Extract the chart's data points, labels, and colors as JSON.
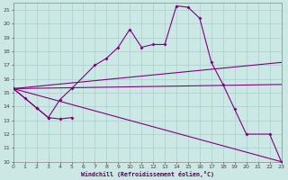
{
  "xlabel": "Windchill (Refroidissement éolien,°C)",
  "background_color": "#cce8e4",
  "line_color": "#800080",
  "grid_color": "#aacfcc",
  "xmin": 0,
  "xmax": 23,
  "ymin": 10,
  "ymax": 21.5,
  "yticks": [
    10,
    11,
    12,
    13,
    14,
    15,
    16,
    17,
    18,
    19,
    20,
    21
  ],
  "xticks": [
    0,
    1,
    2,
    3,
    4,
    5,
    6,
    7,
    8,
    9,
    10,
    11,
    12,
    13,
    14,
    15,
    16,
    17,
    18,
    19,
    20,
    21,
    22,
    23
  ],
  "curve1_x": [
    0,
    1,
    2,
    3,
    4,
    5
  ],
  "curve1_y": [
    15.3,
    14.6,
    13.9,
    13.2,
    13.1,
    13.2
  ],
  "curve2_x": [
    0,
    2,
    3,
    4,
    5,
    7,
    8,
    9,
    10,
    11,
    12,
    13,
    14,
    15,
    16,
    17,
    18,
    19,
    20,
    22,
    23
  ],
  "curve2_y": [
    15.3,
    13.9,
    13.2,
    14.5,
    15.3,
    17.0,
    17.5,
    18.3,
    19.6,
    18.3,
    18.5,
    18.5,
    21.3,
    21.2,
    20.4,
    17.2,
    15.6,
    13.8,
    12.0,
    12.0,
    10.0
  ],
  "line1_x": [
    0,
    23
  ],
  "line1_y": [
    15.3,
    17.2
  ],
  "line2_x": [
    0,
    23
  ],
  "line2_y": [
    15.3,
    15.6
  ],
  "line3_x": [
    0,
    23
  ],
  "line3_y": [
    15.3,
    10.0
  ]
}
